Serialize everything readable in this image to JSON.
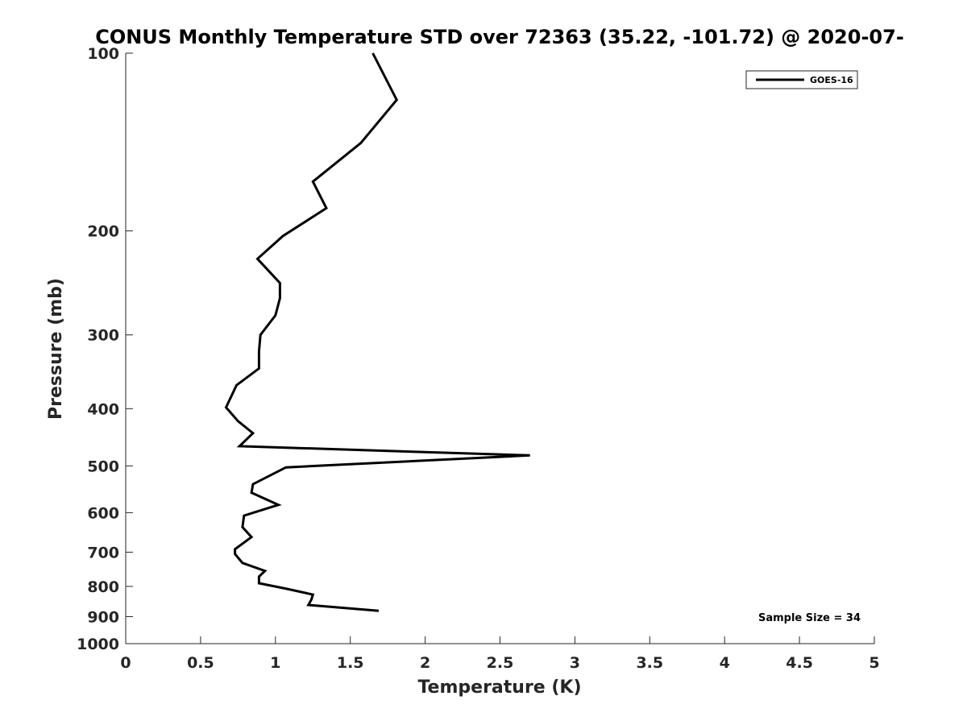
{
  "chart_data": {
    "type": "line",
    "title": "CONUS Monthly Temperature STD over 72363 (35.22, -101.72) @ 2020-07-",
    "xlabel": "Temperature (K)",
    "ylabel": "Pressure (mb)",
    "xlim": [
      0,
      5
    ],
    "ylim": [
      100,
      1000
    ],
    "yscale": "log",
    "y_reversed": true,
    "x_ticks": [
      0,
      0.5,
      1,
      1.5,
      2,
      2.5,
      3,
      3.5,
      4,
      4.5,
      5
    ],
    "x_tick_labels": [
      "0",
      "0.5",
      "1",
      "1.5",
      "2",
      "2.5",
      "3",
      "3.5",
      "4",
      "4.5",
      "5"
    ],
    "y_ticks": [
      100,
      200,
      300,
      400,
      500,
      600,
      700,
      800,
      900,
      1000
    ],
    "y_tick_labels": [
      "100",
      "200",
      "300",
      "400",
      "500",
      "600",
      "700",
      "800",
      "900",
      "1000"
    ],
    "legend": {
      "placement": "top-right",
      "entries": [
        "GOES-16"
      ]
    },
    "annotation": "Sample Size = 34",
    "series": [
      {
        "name": "GOES-16",
        "color": "#000000",
        "points": [
          [
            1.65,
            100
          ],
          [
            1.81,
            120
          ],
          [
            1.57,
            142
          ],
          [
            1.25,
            165
          ],
          [
            1.34,
            183
          ],
          [
            1.05,
            204
          ],
          [
            0.88,
            223
          ],
          [
            1.03,
            245
          ],
          [
            1.03,
            260
          ],
          [
            1.0,
            278
          ],
          [
            0.9,
            300
          ],
          [
            0.89,
            320
          ],
          [
            0.89,
            342
          ],
          [
            0.74,
            365
          ],
          [
            0.67,
            398
          ],
          [
            0.75,
            420
          ],
          [
            0.85,
            440
          ],
          [
            0.76,
            463
          ],
          [
            2.7,
            480
          ],
          [
            1.07,
            503
          ],
          [
            0.85,
            537
          ],
          [
            0.84,
            555
          ],
          [
            1.02,
            582
          ],
          [
            0.79,
            607
          ],
          [
            0.78,
            635
          ],
          [
            0.84,
            660
          ],
          [
            0.73,
            692
          ],
          [
            0.73,
            705
          ],
          [
            0.78,
            730
          ],
          [
            0.93,
            753
          ],
          [
            0.89,
            770
          ],
          [
            0.89,
            790
          ],
          [
            1.08,
            808
          ],
          [
            1.25,
            826
          ],
          [
            1.24,
            842
          ],
          [
            1.22,
            860
          ],
          [
            1.69,
            880
          ]
        ]
      }
    ]
  }
}
